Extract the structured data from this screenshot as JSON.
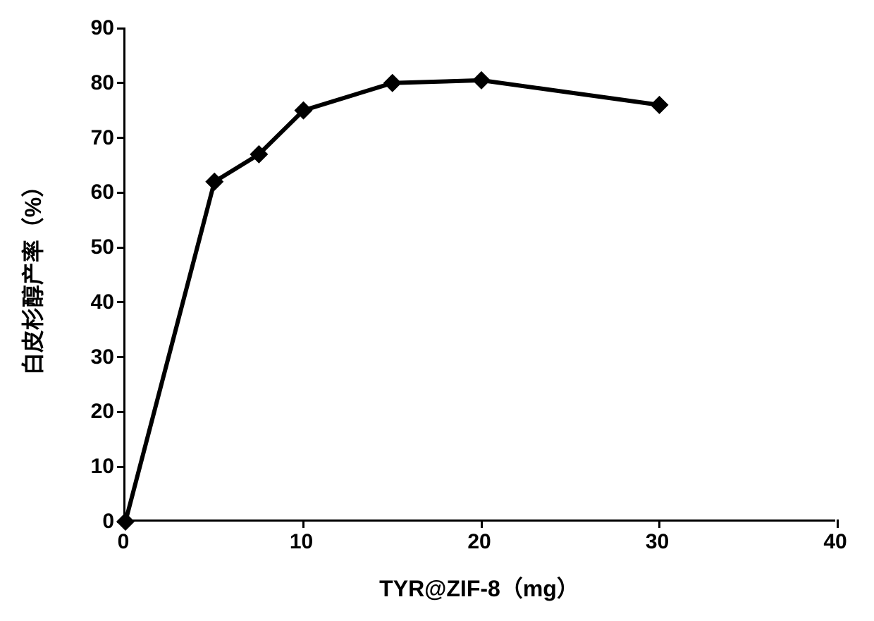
{
  "chart": {
    "type": "line",
    "xlabel": "TYR@ZIF-8（mg）",
    "ylabel": "白皮杉醇产率（%）",
    "label_fontsize": 32,
    "tick_fontsize": 30,
    "xlim": [
      0,
      40
    ],
    "ylim": [
      0,
      90
    ],
    "xtick_step": 10,
    "ytick_step": 10,
    "xticks": [
      0,
      10,
      20,
      30,
      40
    ],
    "yticks": [
      0,
      10,
      20,
      30,
      40,
      50,
      60,
      70,
      80,
      90
    ],
    "background_color": "#ffffff",
    "axis_color": "#000000",
    "line_color": "#000000",
    "marker_color": "#000000",
    "line_width": 6,
    "marker_size": 26,
    "marker_style": "diamond",
    "data": {
      "x": [
        0,
        5,
        7.5,
        10,
        15,
        20,
        30
      ],
      "y": [
        0,
        62,
        67,
        75,
        80,
        80.5,
        76
      ]
    }
  }
}
